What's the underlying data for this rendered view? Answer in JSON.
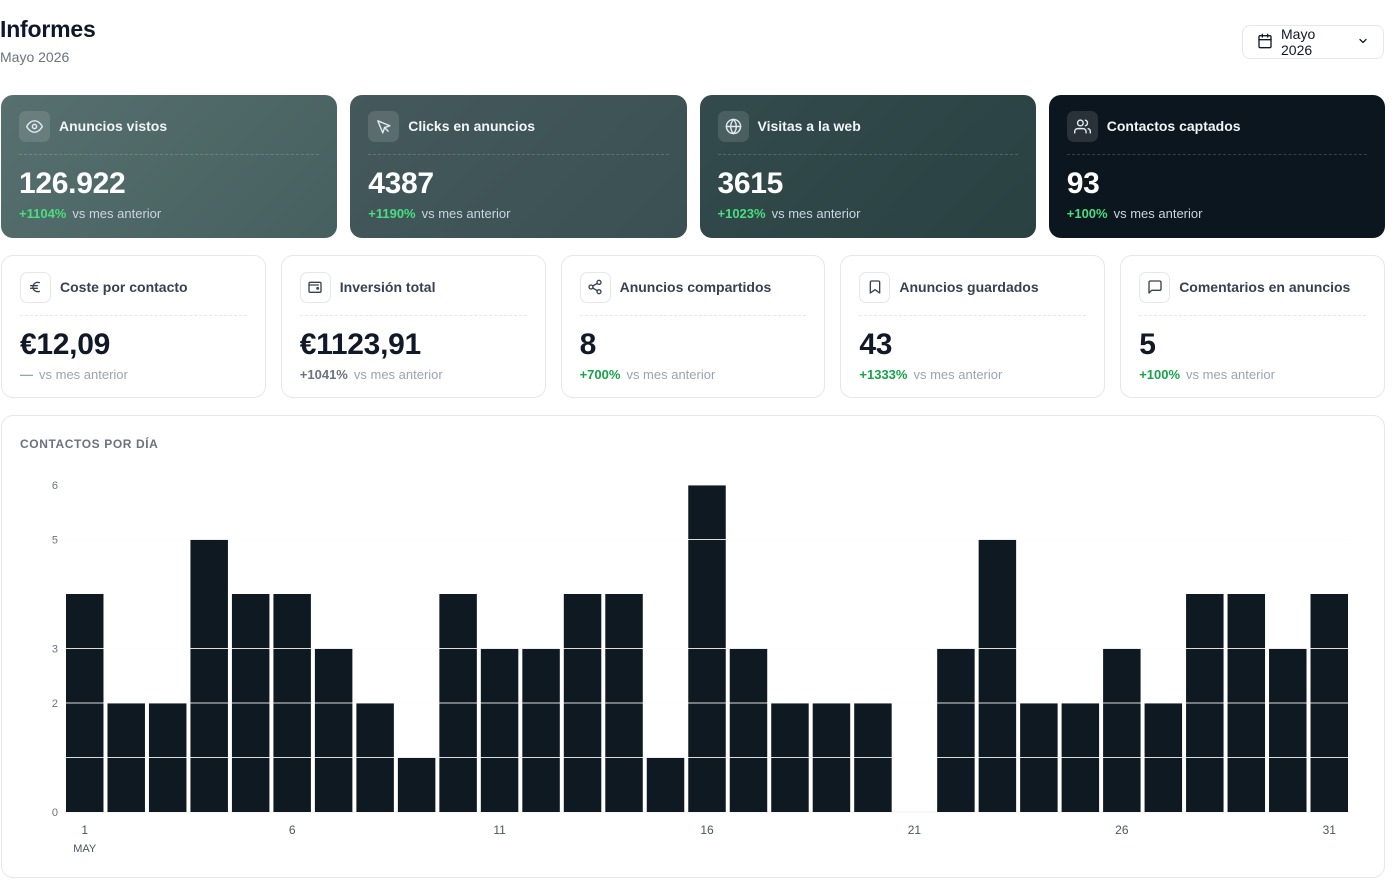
{
  "header": {
    "title": "Informes",
    "subtitle": "Mayo 2026"
  },
  "month_picker": {
    "label": "Mayo 2026",
    "icon": "calendar-icon"
  },
  "colors": {
    "positive": "#22c55e",
    "bar": "#0f1922",
    "card1": "#4f666b",
    "card2": "#3f5659",
    "card3": "#2f4648",
    "card4": "#0c161e"
  },
  "kpis_primary": [
    {
      "label": "Anuncios vistos",
      "icon": "eye-icon",
      "value": "126.922",
      "trend": "+1104%",
      "trend_text": "vs mes anterior"
    },
    {
      "label": "Clicks en anuncios",
      "icon": "cursor-icon",
      "value": "4387",
      "trend": "+1190%",
      "trend_text": "vs mes anterior"
    },
    {
      "label": "Visitas a la web",
      "icon": "globe-icon",
      "value": "3615",
      "trend": "+1023%",
      "trend_text": "vs mes anterior"
    },
    {
      "label": "Contactos captados",
      "icon": "users-icon",
      "value": "93",
      "trend": "+100%",
      "trend_text": "vs mes anterior"
    }
  ],
  "kpis_secondary": [
    {
      "label": "Coste por contacto",
      "icon": "euro-icon",
      "value": "€12,09",
      "trend": "—",
      "trend_text": "vs mes anterior",
      "trend_color": "#9ca3af"
    },
    {
      "label": "Inversión total",
      "icon": "wallet-icon",
      "value": "€1123,91",
      "trend": "+1041%",
      "trend_text": "vs mes anterior",
      "trend_color": "#6b7280"
    },
    {
      "label": "Anuncios compartidos",
      "icon": "share-icon",
      "value": "8",
      "trend": "+700%",
      "trend_text": "vs mes anterior",
      "trend_color": "#16a34a"
    },
    {
      "label": "Anuncios guardados",
      "icon": "bookmark-icon",
      "value": "43",
      "trend": "+1333%",
      "trend_text": "vs mes anterior",
      "trend_color": "#16a34a"
    },
    {
      "label": "Comentarios en anuncios",
      "icon": "comment-icon",
      "value": "5",
      "trend": "+100%",
      "trend_text": "vs mes anterior",
      "trend_color": "#16a34a"
    }
  ],
  "chart_title": "CONTACTOS POR DÍA",
  "chart_data": {
    "type": "bar",
    "title": "CONTACTOS POR DÍA",
    "categories": [
      "1",
      "2",
      "3",
      "4",
      "5",
      "6",
      "7",
      "8",
      "9",
      "10",
      "11",
      "12",
      "13",
      "14",
      "15",
      "16",
      "17",
      "18",
      "19",
      "20",
      "21",
      "22",
      "23",
      "24",
      "25",
      "26",
      "27",
      "28",
      "29",
      "30",
      "31"
    ],
    "values": [
      4,
      2,
      2,
      5,
      4,
      4,
      3,
      2,
      1,
      4,
      3,
      3,
      4,
      4,
      1,
      6,
      3,
      2,
      2,
      2,
      0,
      3,
      5,
      2,
      2,
      3,
      2,
      4,
      4,
      3,
      4
    ],
    "y_ticks": [
      "0",
      "2",
      "3",
      "5",
      "6"
    ],
    "x_tick_labels": [
      "1",
      "6",
      "11",
      "16",
      "21",
      "26",
      "31"
    ],
    "x_sublabel": "MAY",
    "ylim": [
      0,
      6
    ],
    "grid": true
  }
}
